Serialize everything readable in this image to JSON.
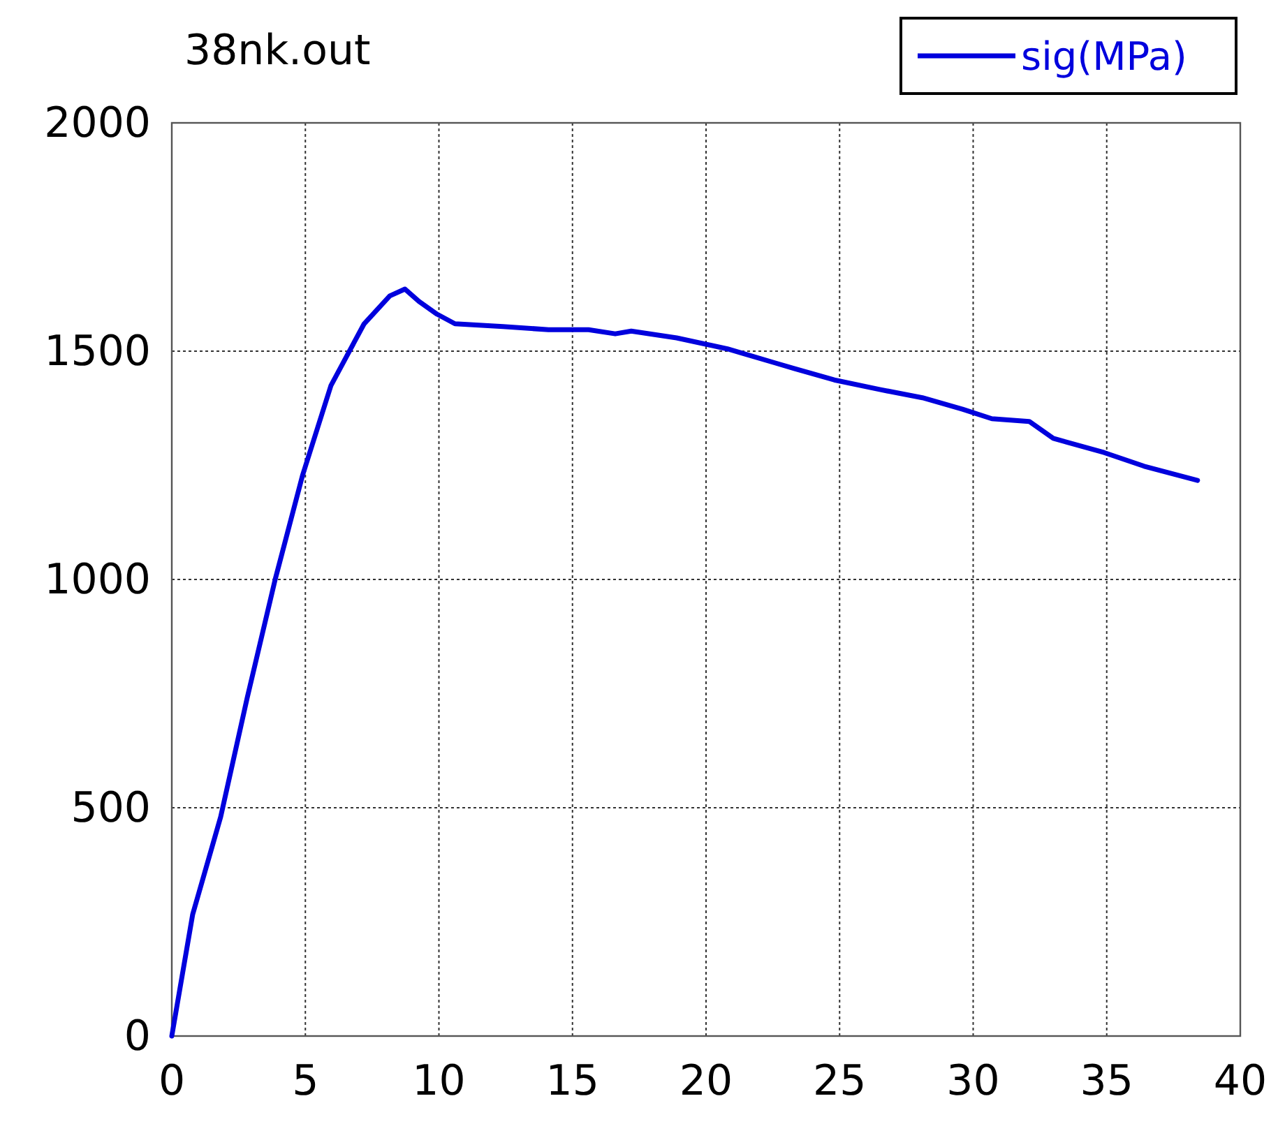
{
  "chart_data": {
    "type": "line",
    "title": "38nk.out",
    "x": [
      0,
      0.78,
      1.83,
      2.82,
      3.87,
      4.9,
      5.96,
      7.2,
      8.16,
      8.73,
      9.25,
      9.93,
      10.6,
      12.4,
      14.1,
      15.6,
      16.6,
      17.2,
      18.9,
      20.8,
      22.6,
      23.3,
      24.8,
      26.5,
      28.1,
      29.6,
      30.7,
      32.1,
      33.0,
      34.9,
      36.4,
      38.4
    ],
    "series": [
      {
        "name": "sig(MPa)",
        "color": "#0000dd",
        "values": [
          0,
          266,
          480,
          740,
          1000,
          1229,
          1425,
          1560,
          1621,
          1636,
          1609,
          1581,
          1560,
          1554,
          1547,
          1547,
          1538,
          1544,
          1529,
          1505,
          1474,
          1462,
          1437,
          1416,
          1398,
          1373,
          1352,
          1346,
          1309,
          1278,
          1248,
          1217
        ]
      }
    ],
    "xlim": [
      0,
      40
    ],
    "xticks": [
      0,
      5,
      10,
      15,
      20,
      25,
      30,
      35,
      40
    ],
    "ylim": [
      0,
      2000
    ],
    "yticks": [
      0,
      500,
      1000,
      1500,
      2000
    ],
    "grid": true,
    "legend": "top right",
    "line_style": "solid"
  }
}
